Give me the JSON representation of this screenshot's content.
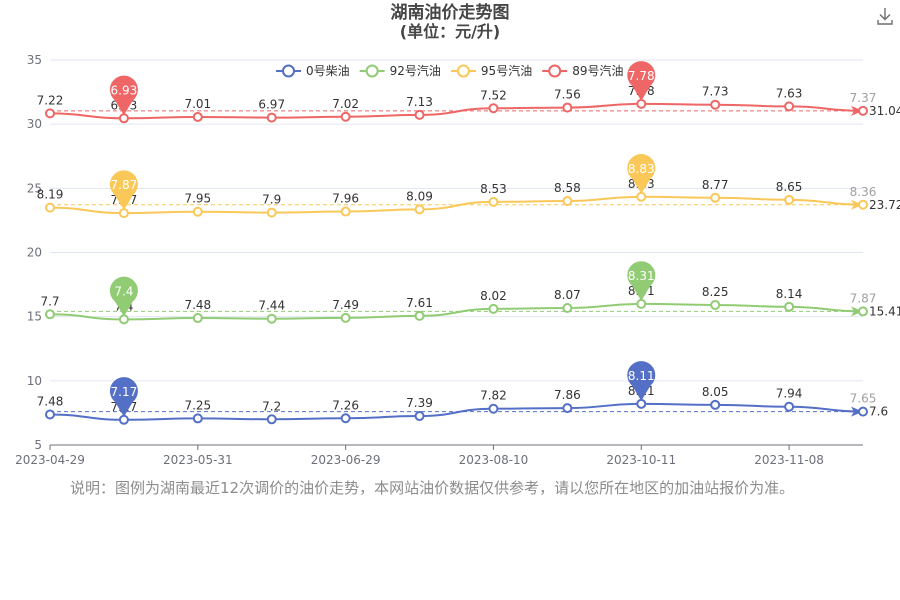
{
  "chart_data": {
    "type": "line",
    "title": "湖南油价走势图",
    "subtitle": "(单位：元/升)",
    "xlim_labels": [
      "2023-04-29",
      "2023-05-31",
      "2023-06-29",
      "2023-08-10",
      "2023-10-11",
      "2023-11-08"
    ],
    "ylim": [
      5,
      35
    ],
    "yticks": [
      "5",
      "10",
      "15",
      "20",
      "25",
      "30",
      "35"
    ],
    "grid": true,
    "legend_position": "top-right",
    "markline_values": [
      "7.6",
      "15.41",
      "23.72",
      "31.04"
    ],
    "series": [
      {
        "name": "0号柴油",
        "color": "#5470c6",
        "values": [
          7.48,
          7.17,
          7.25,
          7.2,
          7.26,
          7.39,
          7.82,
          7.86,
          8.11,
          8.05,
          7.94,
          7.65
        ],
        "labels": [
          "7.48",
          "7.17",
          "7.25",
          "7.2",
          "7.26",
          "7.39",
          "7.82",
          "7.86",
          "8.11",
          "8.05",
          "7.94",
          "7.65"
        ],
        "max_label": "8.11",
        "min_label": "7.17"
      },
      {
        "name": "92号汽油",
        "color": "#91cc75",
        "values": [
          7.7,
          7.4,
          7.48,
          7.44,
          7.49,
          7.61,
          8.02,
          8.07,
          8.31,
          8.25,
          8.14,
          7.87
        ],
        "labels": [
          "7.7",
          "7.4",
          "7.48",
          "7.44",
          "7.49",
          "7.61",
          "8.02",
          "8.07",
          "8.31",
          "8.25",
          "8.14",
          "7.87"
        ],
        "max_label": "8.31",
        "min_label": "7.4"
      },
      {
        "name": "95号汽油",
        "color": "#fac858",
        "values": [
          8.19,
          7.87,
          7.95,
          7.9,
          7.96,
          8.09,
          8.53,
          8.58,
          8.83,
          8.77,
          8.65,
          8.36
        ],
        "labels": [
          "8.19",
          "7.87",
          "7.95",
          "7.9",
          "7.96",
          "8.09",
          "8.53",
          "8.58",
          "8.83",
          "8.77",
          "8.65",
          "8.36"
        ],
        "max_label": "8.83",
        "min_label": "7.87"
      },
      {
        "name": "89号汽油",
        "color": "#ee6666",
        "values": [
          7.22,
          6.93,
          7.01,
          6.97,
          7.02,
          7.13,
          7.52,
          7.56,
          7.78,
          7.73,
          7.63,
          7.37
        ],
        "labels": [
          "7.22",
          "6.93",
          "7.01",
          "6.97",
          "7.02",
          "7.13",
          "7.52",
          "7.56",
          "7.78",
          "7.73",
          "7.63",
          "7.37"
        ],
        "max_label": "7.78",
        "min_label": "6.93"
      }
    ]
  },
  "note": "说明：图例为湖南最近12次调价的油价走势，本网站油价数据仅供参考，请以您所在地区的加油站报价为准。",
  "download_icon": "download-icon"
}
